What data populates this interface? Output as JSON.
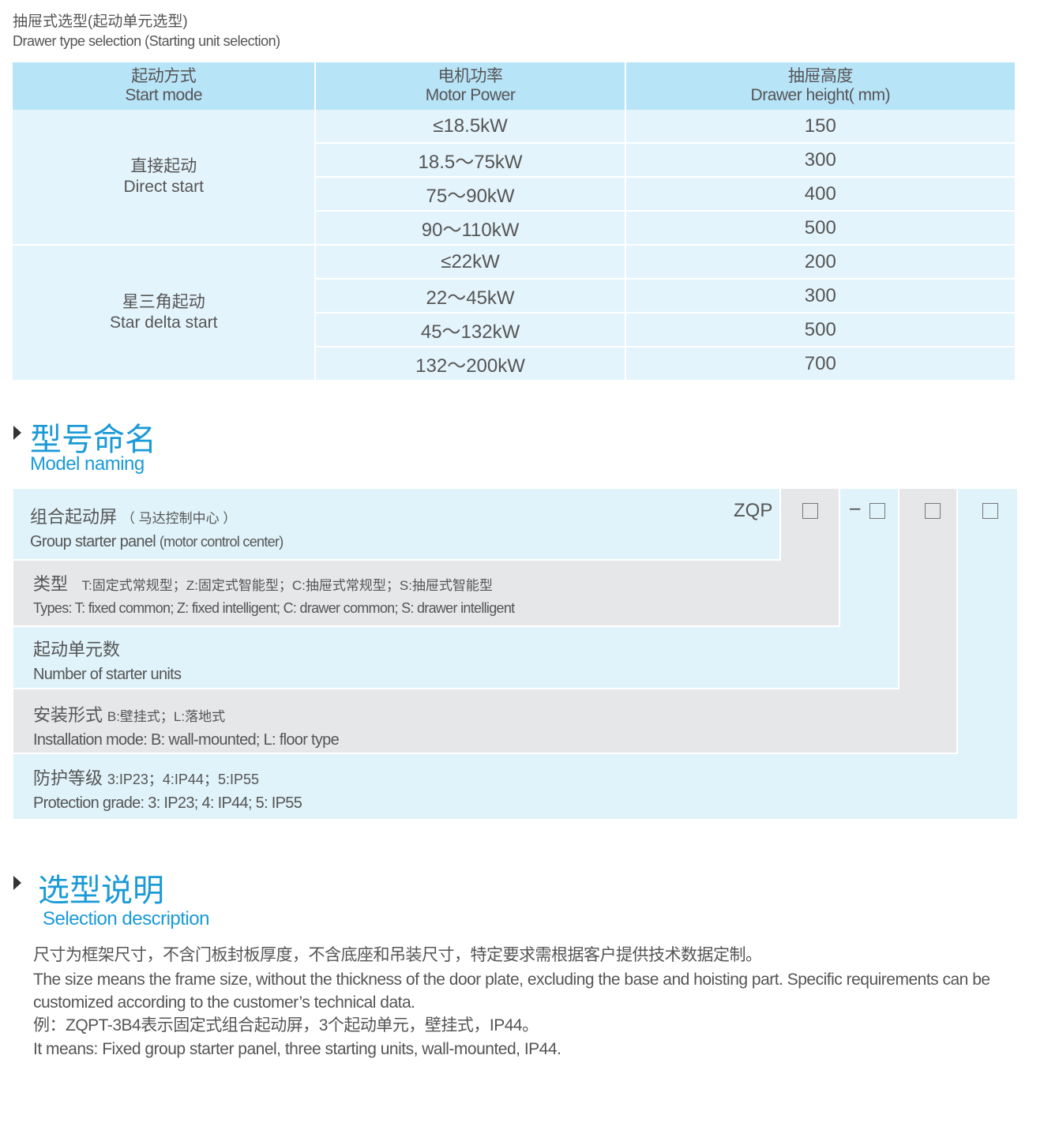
{
  "caption": {
    "cn": "抽屉式选型(起动单元选型)",
    "en": "Drawer type selection (Starting unit selection)"
  },
  "table": {
    "headers": [
      {
        "cn": "起动方式",
        "en": "Start mode"
      },
      {
        "cn": "电机功率",
        "en": "Motor Power"
      },
      {
        "cn": "抽屉高度",
        "en": "Drawer height( mm)"
      }
    ],
    "groups": [
      {
        "cn": "直接起动",
        "en": "Direct start",
        "rows": [
          [
            "≤18.5kW",
            "150"
          ],
          [
            "18.5～75kW",
            "300"
          ],
          [
            "75～90kW",
            "400"
          ],
          [
            "90～110kW",
            "500"
          ]
        ]
      },
      {
        "cn": "星三角起动",
        "en": "Star delta start",
        "rows": [
          [
            "≤22kW",
            "200"
          ],
          [
            "22～45kW",
            "300"
          ],
          [
            "45～132kW",
            "500"
          ],
          [
            "132～200kW",
            "700"
          ]
        ]
      }
    ]
  },
  "model_naming": {
    "title_cn": "型号命名",
    "title_en": "Model naming",
    "code_prefix": "ZQP",
    "dash": "–",
    "rows": [
      {
        "cn": "组合起动屏",
        "cn_note": "（ 马达控制中心 ）",
        "en": "Group starter panel",
        "en_note": "(motor control center)"
      },
      {
        "cn": "类型",
        "cn_note": "T:固定式常规型；Z:固定式智能型；C:抽屉式常规型；S:抽屉式智能型",
        "en": "Types: T: fixed common; Z: fixed intelligent; C: drawer common; S: drawer intelligent"
      },
      {
        "cn": "起动单元数",
        "en": "Number  of  starter units"
      },
      {
        "cn": "安装形式",
        "cn_note": "B:壁挂式；L:落地式",
        "en": "Installation mode: B: wall-mounted; L: floor type"
      },
      {
        "cn": "防护等级",
        "cn_note": "3:IP23；4:IP44；5:IP55",
        "en": "Protection grade:  3: IP23; 4: IP44; 5: IP55"
      }
    ],
    "colors": {
      "blue": "#e0f3fa",
      "gray": "#e6e7e9"
    }
  },
  "selection": {
    "title_cn": "选型说明",
    "title_en": "Selection description",
    "lines": [
      "尺寸为框架尺寸，不含门板封板厚度，不含底座和吊装尺寸，特定要求需根据客户提供技术数据定制。",
      "The size means the frame size, without the thickness of the door plate, excluding the base and hoisting part. Specific requirements can be customized according to the customer’s technical data.",
      "例：ZQPT-3B4表示固定式组合起动屏，3个起动单元，壁挂式，IP44。",
      "It means: Fixed group starter panel, three starting units, wall-mounted, IP44."
    ]
  },
  "colors": {
    "accent": "#1a9ad6",
    "header_bg": "#b8e4f8",
    "cell_bg": "#e4f4fc"
  }
}
